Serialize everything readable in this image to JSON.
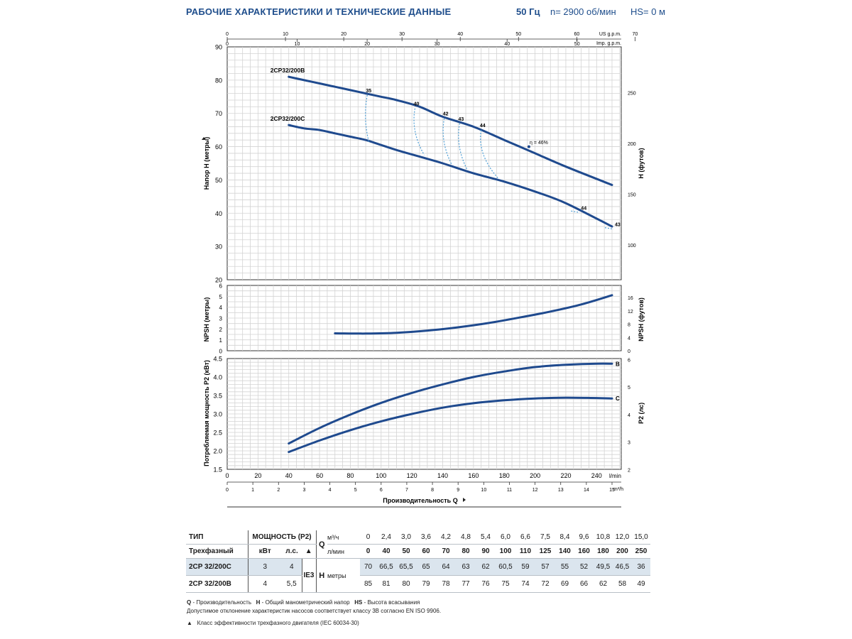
{
  "header": {
    "title": "РАБОЧИЕ ХАРАКТЕРИСТИКИ И ТЕХНИЧЕСКИЕ ДАННЫЕ",
    "frequency": "50 Гц",
    "speed": "n= 2900 об/мин",
    "hs": "HS= 0 м"
  },
  "chart_data": [
    {
      "type": "line",
      "panel": "head",
      "ylabel": "Напор H (метры)",
      "ylabel_right": "H (футов)",
      "xlim": [
        0,
        256
      ],
      "ylim": [
        20,
        90
      ],
      "y_ticks": [
        20,
        30,
        40,
        50,
        60,
        70,
        80,
        90
      ],
      "y_ticks_right": [
        100,
        150,
        200,
        250
      ],
      "top_axis_us": {
        "label": "US g.p.m.",
        "ticks": [
          0,
          10,
          20,
          30,
          40,
          50,
          60,
          70
        ]
      },
      "top_axis_imp": {
        "label": "Imp. g.p.m.",
        "ticks": [
          0,
          10,
          20,
          30,
          40,
          50
        ]
      },
      "grid": true,
      "series": [
        {
          "name": "2CP32/200B",
          "x": [
            40,
            50,
            60,
            70,
            80,
            90,
            100,
            110,
            125,
            140,
            160,
            180,
            200,
            220,
            250
          ],
          "y": [
            81,
            80,
            79,
            78,
            77,
            76,
            75,
            74,
            72,
            69,
            66,
            62,
            58,
            54,
            48.5
          ]
        },
        {
          "name": "2CP32/200C",
          "x": [
            40,
            50,
            60,
            70,
            80,
            90,
            100,
            110,
            125,
            140,
            160,
            180,
            200,
            220,
            250
          ],
          "y": [
            66.5,
            65.5,
            65,
            64,
            63,
            62,
            60.5,
            59,
            57,
            55,
            52,
            49.5,
            46.5,
            43,
            36
          ]
        }
      ],
      "efficiency_lines": [
        {
          "label": "35",
          "x_top": 91,
          "y_top": 75.5,
          "x_bot": 92,
          "y_bot": 61.5
        },
        {
          "label": "40",
          "x_top": 122,
          "y_top": 71.5,
          "x_bot": 128,
          "y_bot": 57.5
        },
        {
          "label": "42",
          "x_top": 141,
          "y_top": 68.5,
          "x_bot": 146,
          "y_bot": 54.5
        },
        {
          "label": "43",
          "x_top": 151,
          "y_top": 67.0,
          "x_bot": 156,
          "y_bot": 53
        },
        {
          "label": "44",
          "x_top": 165,
          "y_top": 65.0,
          "x_bot": 176,
          "y_bot": 50.5
        }
      ],
      "efficiency_markers": [
        {
          "label": "44",
          "x": 228,
          "y": 41.5
        },
        {
          "label": "43",
          "x": 250,
          "y": 36.5
        }
      ],
      "peak": {
        "text": "η = 46%",
        "x": 196,
        "y": 60
      }
    },
    {
      "type": "line",
      "panel": "npsh",
      "ylabel": "NPSH (метры)",
      "ylabel_right": "NPSH (футов)",
      "ylim": [
        0,
        6
      ],
      "y_ticks": [
        0,
        1,
        2,
        3,
        4,
        5,
        6
      ],
      "y_ticks_right": [
        0,
        4,
        8,
        12,
        16
      ],
      "grid": true,
      "series": [
        {
          "x": [
            70,
            90,
            110,
            130,
            150,
            170,
            190,
            210,
            230,
            250
          ],
          "y": [
            1.6,
            1.58,
            1.65,
            1.85,
            2.15,
            2.55,
            3.05,
            3.6,
            4.25,
            5.1
          ]
        }
      ]
    },
    {
      "type": "line",
      "panel": "power",
      "ylabel": "Потребляемая мощность P2 (кВт)",
      "ylabel_right": "P2 (лс)",
      "ylim": [
        1.5,
        4.5
      ],
      "y_ticks": [
        1.5,
        2.0,
        2.5,
        3.0,
        3.5,
        4.0,
        4.5
      ],
      "y_ticks_right": [
        2,
        3,
        4,
        5,
        6
      ],
      "grid": true,
      "series": [
        {
          "name": "B",
          "x": [
            40,
            60,
            80,
            100,
            120,
            140,
            160,
            180,
            200,
            220,
            240,
            250
          ],
          "y": [
            2.2,
            2.62,
            2.98,
            3.3,
            3.57,
            3.8,
            4.0,
            4.15,
            4.27,
            4.33,
            4.36,
            4.36
          ]
        },
        {
          "name": "C",
          "x": [
            40,
            60,
            80,
            100,
            120,
            140,
            160,
            180,
            200,
            220,
            240,
            250
          ],
          "y": [
            1.97,
            2.28,
            2.56,
            2.8,
            3.0,
            3.17,
            3.29,
            3.37,
            3.42,
            3.44,
            3.43,
            3.42
          ]
        }
      ]
    }
  ],
  "x_axis": {
    "lmin_unit": "l/min",
    "lmin_ticks": [
      0,
      20,
      40,
      60,
      80,
      100,
      120,
      140,
      160,
      180,
      200,
      220,
      240
    ],
    "m3h_unit": "m³/h",
    "m3h_ticks": [
      0,
      1,
      2,
      3,
      4,
      5,
      6,
      7,
      8,
      9,
      10,
      11,
      12,
      13,
      14,
      15
    ],
    "label": "Производительность Q"
  },
  "table": {
    "type_header": "ТИП",
    "phase_header": "Трехфазный",
    "power_header": "МОЩНОСТЬ (P2)",
    "kw": "кВт",
    "hp": "л.с.",
    "class_symbol": "▲",
    "q_label": "Q",
    "m3h": "м³/ч",
    "lmin": "л/мин",
    "ie_class": "IE3",
    "h_label": "H",
    "h_unit": "метры",
    "q_m3h": [
      "0",
      "2,4",
      "3,0",
      "3,6",
      "4,2",
      "4,8",
      "5,4",
      "6,0",
      "6,6",
      "7,5",
      "8,4",
      "9,6",
      "10,8",
      "12,0",
      "15,0"
    ],
    "q_lmin": [
      "0",
      "40",
      "50",
      "60",
      "70",
      "80",
      "90",
      "100",
      "110",
      "125",
      "140",
      "160",
      "180",
      "200",
      "250"
    ],
    "rows": [
      {
        "model": "2CP 32/200C",
        "kw": "3",
        "hp": "4",
        "h": [
          "70",
          "66,5",
          "65,5",
          "65",
          "64",
          "63",
          "62",
          "60,5",
          "59",
          "57",
          "55",
          "52",
          "49,5",
          "46,5",
          "36"
        ]
      },
      {
        "model": "2CP 32/200B",
        "kw": "4",
        "hp": "5,5",
        "h": [
          "85",
          "81",
          "80",
          "79",
          "78",
          "77",
          "76",
          "75",
          "74",
          "72",
          "69",
          "66",
          "62",
          "58",
          "49"
        ]
      }
    ]
  },
  "notes": {
    "q_key": "Q",
    "q_text": " - Производительность",
    "h_key": "H",
    "h_text": " - Общий манометрический напор",
    "hs_key": "HS",
    "hs_text": " - Высота всасывания",
    "tolerance": "Допустимое отклонение характеристик насосов соответствует классу 3B согласно EN ISO 9906.",
    "ie_symbol": "▲",
    "ie_text": "Класс эффективности трехфазного двигателя (IEC 60034-30)"
  },
  "colors": {
    "curve": "#1f4a8e",
    "efficiency_dashed": "#4f9fd6",
    "header": "#1f4e8c",
    "table_highlight": "#dbe5ee"
  }
}
